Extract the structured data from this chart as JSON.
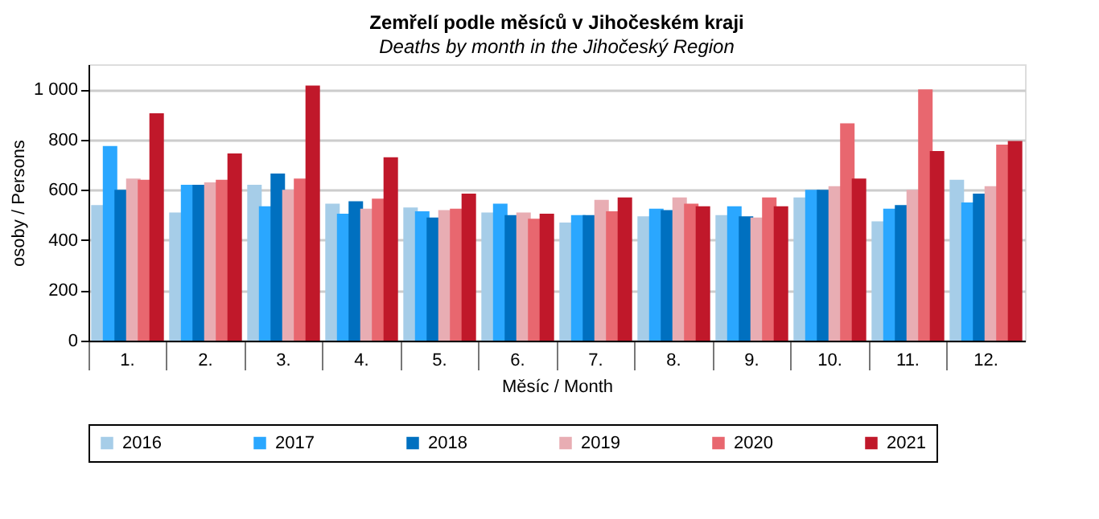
{
  "chart_data": {
    "type": "bar",
    "title": "Zemřelí podle měsíců v Jihočeském kraji",
    "subtitle": "Deaths by month in the Jihočeský Region",
    "xlabel": "Měsíc / Month",
    "ylabel": "osoby / Persons",
    "categories": [
      "1.",
      "2.",
      "3.",
      "4.",
      "5.",
      "6.",
      "7.",
      "8.",
      "9.",
      "10.",
      "11.",
      "12."
    ],
    "series": [
      {
        "name": "2016",
        "color": "#a6cde8",
        "values": [
          540,
          510,
          620,
          545,
          530,
          510,
          470,
          495,
          500,
          570,
          475,
          640
        ]
      },
      {
        "name": "2017",
        "color": "#2aa7ff",
        "values": [
          775,
          620,
          535,
          505,
          515,
          545,
          500,
          525,
          535,
          600,
          525,
          550
        ]
      },
      {
        "name": "2018",
        "color": "#0070c0",
        "values": [
          600,
          620,
          665,
          555,
          490,
          500,
          500,
          520,
          495,
          600,
          540,
          585
        ]
      },
      {
        "name": "2019",
        "color": "#e8adb3",
        "values": [
          645,
          630,
          600,
          525,
          520,
          510,
          560,
          570,
          490,
          615,
          600,
          615
        ]
      },
      {
        "name": "2020",
        "color": "#e8676f",
        "values": [
          640,
          640,
          645,
          565,
          525,
          485,
          515,
          545,
          570,
          865,
          1000,
          780
        ]
      },
      {
        "name": "2021",
        "color": "#c0182a",
        "values": [
          905,
          745,
          1015,
          730,
          585,
          505,
          570,
          535,
          535,
          645,
          755,
          795
        ]
      }
    ],
    "ylim": [
      0,
      1100
    ],
    "yticks": [
      0,
      200,
      400,
      600,
      800,
      {
        "value": 1000,
        "label": "1 000"
      }
    ],
    "grid": "y",
    "legend": "bottom"
  }
}
